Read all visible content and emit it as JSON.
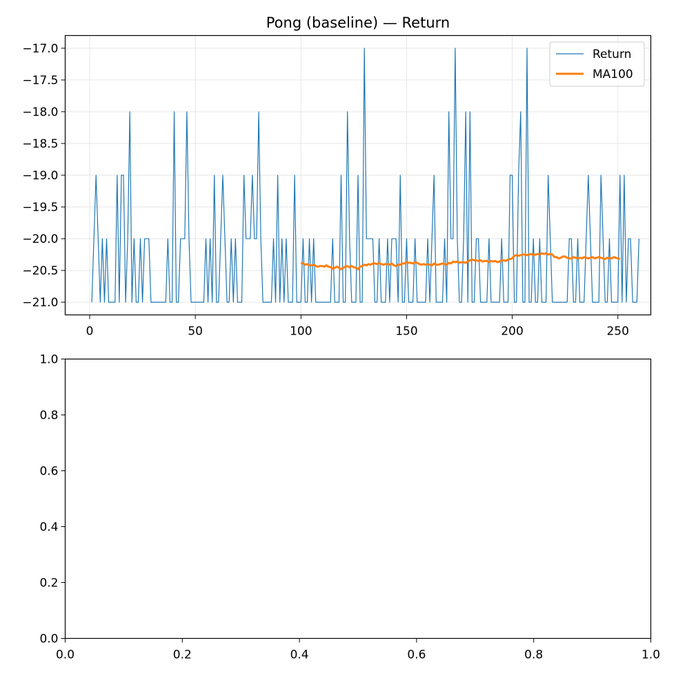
{
  "colors": {
    "return": "#1f77b4",
    "ma": "#ff7f0e",
    "grid": "#e6e6e6",
    "axis": "#000000",
    "background": "#ffffff"
  },
  "chart_data": [
    {
      "type": "line",
      "title": "Pong (baseline) — Return",
      "xlabel": "",
      "ylabel": "",
      "xlim": [
        -11.6,
        265.6
      ],
      "ylim": [
        -21.2,
        -16.8
      ],
      "xticks": [
        0,
        50,
        100,
        150,
        200,
        250
      ],
      "xtick_labels": [
        "0",
        "50",
        "100",
        "150",
        "200",
        "250"
      ],
      "yticks": [
        -17.0,
        -17.5,
        -18.0,
        -18.5,
        -19.0,
        -19.5,
        -20.0,
        -20.5,
        -21.0
      ],
      "ytick_labels": [
        "−17.0",
        "−17.5",
        "−18.0",
        "−18.5",
        "−19.0",
        "−19.5",
        "−20.0",
        "−20.5",
        "−21.0"
      ],
      "grid": true,
      "legend": "top-right",
      "series": [
        {
          "name": "Return",
          "x_start": 1,
          "values": [
            -21,
            -20,
            -19,
            -20,
            -21,
            -20,
            -21,
            -20,
            -21,
            -21,
            -21,
            -21,
            -19,
            -21,
            -19,
            -19,
            -21,
            -20,
            -18,
            -21,
            -20,
            -21,
            -21,
            -20,
            -21,
            -20,
            -20,
            -20,
            -21,
            -21,
            -21,
            -21,
            -21,
            -21,
            -21,
            -21,
            -20,
            -21,
            -21,
            -18,
            -21,
            -21,
            -20,
            -20,
            -20,
            -18,
            -20,
            -21,
            -21,
            -21,
            -21,
            -21,
            -21,
            -21,
            -20,
            -21,
            -20,
            -21,
            -19,
            -21,
            -21,
            -20,
            -19,
            -20,
            -21,
            -21,
            -20,
            -21,
            -20,
            -21,
            -21,
            -21,
            -19,
            -20,
            -20,
            -20,
            -19,
            -20,
            -20,
            -18,
            -20,
            -21,
            -21,
            -21,
            -21,
            -21,
            -20,
            -21,
            -19,
            -21,
            -20,
            -21,
            -20,
            -21,
            -21,
            -21,
            -19,
            -21,
            -21,
            -21,
            -20,
            -21,
            -21,
            -20,
            -21,
            -20,
            -21,
            -21,
            -21,
            -21,
            -21,
            -21,
            -21,
            -21,
            -20,
            -21,
            -21,
            -21,
            -19,
            -21,
            -21,
            -18,
            -20,
            -21,
            -21,
            -21,
            -19,
            -21,
            -21,
            -17,
            -20,
            -20,
            -20,
            -20,
            -21,
            -21,
            -20,
            -21,
            -21,
            -21,
            -20,
            -21,
            -20,
            -20,
            -20,
            -21,
            -19,
            -21,
            -21,
            -20,
            -21,
            -21,
            -21,
            -20,
            -21,
            -21,
            -21,
            -21,
            -21,
            -20,
            -21,
            -20,
            -19,
            -21,
            -21,
            -21,
            -21,
            -20,
            -21,
            -18,
            -20,
            -20,
            -17,
            -20,
            -21,
            -21,
            -20,
            -18,
            -21,
            -18,
            -21,
            -21,
            -20,
            -20,
            -21,
            -21,
            -21,
            -21,
            -20,
            -21,
            -21,
            -21,
            -21,
            -21,
            -20,
            -21,
            -21,
            -21,
            -19,
            -19,
            -21,
            -21,
            -19,
            -18,
            -21,
            -21,
            -17,
            -21,
            -21,
            -20,
            -21,
            -21,
            -20,
            -21,
            -21,
            -21,
            -19,
            -20,
            -21,
            -21,
            -21,
            -21,
            -21,
            -21,
            -21,
            -21,
            -20,
            -20,
            -21,
            -21,
            -20,
            -21,
            -21,
            -21,
            -20,
            -19,
            -20,
            -21,
            -21,
            -21,
            -21,
            -19,
            -20,
            -21,
            -21,
            -20,
            -21,
            -21,
            -21,
            -21,
            -19,
            -21,
            -19,
            -21,
            -20,
            -20,
            -21,
            -21,
            -21,
            -20
          ]
        },
        {
          "name": "MA100",
          "x_start": 100,
          "values": [
            -20.38,
            -20.39,
            -20.41,
            -20.4,
            -20.42,
            -20.42,
            -20.41,
            -20.43,
            -20.44,
            -20.43,
            -20.43,
            -20.44,
            -20.42,
            -20.44,
            -20.45,
            -20.47,
            -20.46,
            -20.44,
            -20.46,
            -20.48,
            -20.46,
            -20.44,
            -20.43,
            -20.45,
            -20.43,
            -20.45,
            -20.46,
            -20.48,
            -20.44,
            -20.43,
            -20.41,
            -20.42,
            -20.4,
            -20.41,
            -20.39,
            -20.39,
            -20.4,
            -20.38,
            -20.4,
            -20.41,
            -20.4,
            -20.4,
            -20.41,
            -20.39,
            -20.42,
            -20.43,
            -20.41,
            -20.41,
            -20.39,
            -20.39,
            -20.37,
            -20.38,
            -20.38,
            -20.39,
            -20.37,
            -20.38,
            -20.4,
            -20.41,
            -20.4,
            -20.41,
            -20.4,
            -20.41,
            -20.42,
            -20.39,
            -20.41,
            -20.41,
            -20.4,
            -20.39,
            -20.4,
            -20.41,
            -20.38,
            -20.39,
            -20.36,
            -20.37,
            -20.36,
            -20.38,
            -20.37,
            -20.37,
            -20.38,
            -20.36,
            -20.34,
            -20.33,
            -20.34,
            -20.34,
            -20.35,
            -20.34,
            -20.36,
            -20.35,
            -20.35,
            -20.37,
            -20.35,
            -20.36,
            -20.35,
            -20.37,
            -20.36,
            -20.34,
            -20.34,
            -20.35,
            -20.33,
            -20.32,
            -20.31,
            -20.27,
            -20.26,
            -20.27,
            -20.26,
            -20.25,
            -20.25,
            -20.26,
            -20.25,
            -20.24,
            -20.26,
            -20.25,
            -20.24,
            -20.25,
            -20.23,
            -20.24,
            -20.23,
            -20.25,
            -20.24,
            -20.25,
            -20.29,
            -20.29,
            -20.31,
            -20.3,
            -20.28,
            -20.28,
            -20.3,
            -20.31,
            -20.31,
            -20.29,
            -20.3,
            -20.31,
            -20.3,
            -20.31,
            -20.29,
            -20.3,
            -20.31,
            -20.3,
            -20.29,
            -20.31,
            -20.3,
            -20.29,
            -20.3,
            -20.31,
            -20.32,
            -20.3,
            -20.31,
            -20.31,
            -20.29,
            -20.3,
            -20.31,
            -20.32
          ]
        }
      ]
    },
    {
      "type": "line",
      "title": "",
      "xlabel": "",
      "ylabel": "",
      "xlim": [
        0,
        1
      ],
      "ylim": [
        0,
        1
      ],
      "xticks": [
        0,
        0.2,
        0.4,
        0.6,
        0.8,
        1.0
      ],
      "xtick_labels": [
        "0.0",
        "0.2",
        "0.4",
        "0.6",
        "0.8",
        "1.0"
      ],
      "yticks": [
        0,
        0.2,
        0.4,
        0.6,
        0.8,
        1.0
      ],
      "ytick_labels": [
        "0.0",
        "0.2",
        "0.4",
        "0.6",
        "0.8",
        "1.0"
      ],
      "grid": false,
      "series": []
    }
  ]
}
